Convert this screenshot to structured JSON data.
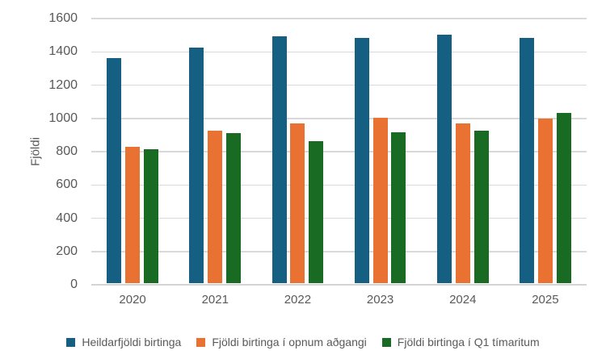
{
  "chart_data": {
    "type": "bar",
    "title": "",
    "xlabel": "",
    "ylabel": "Fjöldi",
    "categories": [
      "2020",
      "2021",
      "2022",
      "2023",
      "2024",
      "2025"
    ],
    "series": [
      {
        "name": "Heildarfjöldi birtinga",
        "color": "#156082",
        "values": [
          1355,
          1415,
          1485,
          1475,
          1495,
          1475
        ]
      },
      {
        "name": "Fjöldi birtinga í opnum aðgangi",
        "color": "#E97132",
        "values": [
          820,
          915,
          960,
          995,
          960,
          990
        ]
      },
      {
        "name": "Fjöldi birtinga í Q1 tímaritum",
        "color": "#196B24",
        "values": [
          805,
          900,
          855,
          905,
          915,
          1025
        ]
      }
    ],
    "ylim": [
      0,
      1600
    ],
    "ytick_step": 200,
    "grid": "horizontal",
    "legend_position": "bottom"
  },
  "styles": {
    "text_color": "#595959",
    "grid_color": "#D9D9D9",
    "axis_color": "#D4D4D4",
    "background": "#FFFFFF"
  }
}
